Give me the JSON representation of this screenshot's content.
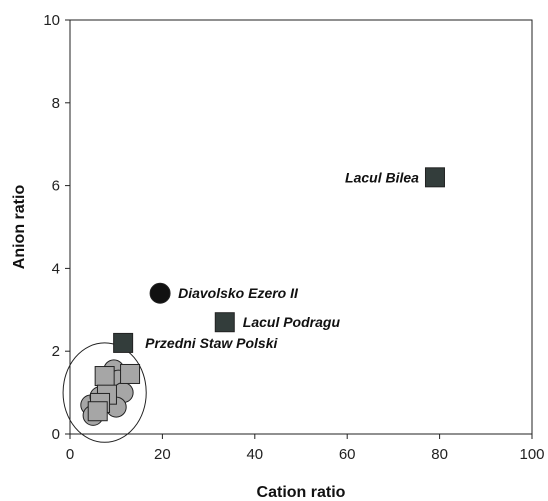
{
  "chart_data": {
    "type": "scatter",
    "xlabel": "Cation ratio",
    "ylabel": "Anion ratio",
    "xlim": [
      0,
      100
    ],
    "ylim": [
      0,
      10
    ],
    "xticks": [
      0,
      20,
      40,
      60,
      80,
      100
    ],
    "yticks": [
      0,
      2,
      4,
      6,
      8,
      10
    ],
    "grid": false,
    "series": [
      {
        "marker": "square",
        "fill": "#333d3b",
        "points": [
          {
            "x": 79,
            "y": 6.2,
            "label": "Lacul Bilea"
          },
          {
            "x": 33.5,
            "y": 2.7,
            "label": "Lacul Podragu"
          },
          {
            "x": 11.5,
            "y": 2.2,
            "label": "Przedni Staw Polski"
          }
        ]
      },
      {
        "marker": "circle",
        "fill": "#111111",
        "points": [
          {
            "x": 19.5,
            "y": 3.4,
            "label": "Diavolsko Ezero II"
          }
        ]
      },
      {
        "marker": "circle",
        "fill": "#a6a6a6",
        "points": [
          {
            "x": 4.5,
            "y": 0.7
          },
          {
            "x": 5.0,
            "y": 0.45
          },
          {
            "x": 6.5,
            "y": 0.9
          },
          {
            "x": 9.5,
            "y": 1.55
          },
          {
            "x": 10.5,
            "y": 1.3
          },
          {
            "x": 11.5,
            "y": 1.0
          },
          {
            "x": 10.0,
            "y": 0.65
          }
        ]
      },
      {
        "marker": "square",
        "fill": "#a6a6a6",
        "points": [
          {
            "x": 7.5,
            "y": 1.4
          },
          {
            "x": 13.0,
            "y": 1.45
          },
          {
            "x": 8.0,
            "y": 0.95
          },
          {
            "x": 6.5,
            "y": 0.75
          },
          {
            "x": 6.0,
            "y": 0.55
          }
        ]
      }
    ],
    "enclosure": {
      "cx": 7.5,
      "cy": 1.0,
      "rx": 9,
      "ry": 1.2
    }
  }
}
